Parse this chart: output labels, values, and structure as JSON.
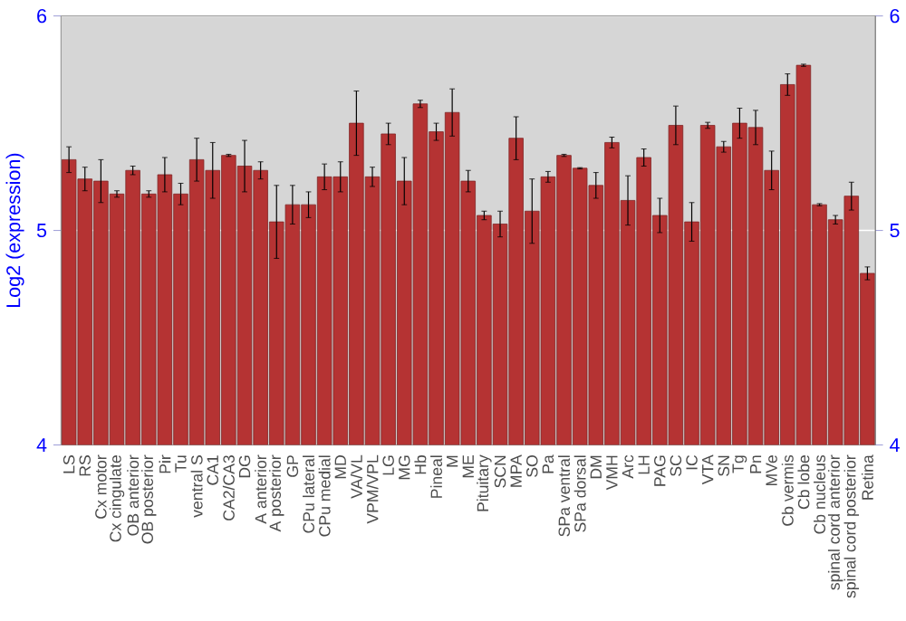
{
  "chart_data": {
    "type": "bar",
    "ylabel": "Log2 (expression)",
    "categories": [
      "LS",
      "RS",
      "Cx motor",
      "Cx cingulate",
      "OB anterior",
      "OB posterior",
      "Pir",
      "Tu",
      "ventral S",
      "CA1",
      "CA2/CA3",
      "DG",
      "A anterior",
      "A posterior",
      "GP",
      "CPu lateral",
      "CPu medial",
      "MD",
      "VA/VL",
      "VPM/VPL",
      "LG",
      "MG",
      "Hb",
      "Pineal",
      "M",
      "ME",
      "Pituitary",
      "SCN",
      "MPA",
      "SO",
      "Pa",
      "SPa ventral",
      "SPa dorsal",
      "DM",
      "VMH",
      "Arc",
      "LH",
      "PAG",
      "SC",
      "IC",
      "VTA",
      "SN",
      "Tg",
      "Pn",
      "MVe",
      "Cb vermis",
      "Cb lobe",
      "Cb nucleus",
      "spinal cord anterior",
      "spinal cord posterior",
      "Retina"
    ],
    "values": [
      5.33,
      5.24,
      5.23,
      5.17,
      5.28,
      5.17,
      5.26,
      5.17,
      5.33,
      5.28,
      5.35,
      5.3,
      5.28,
      5.04,
      5.12,
      5.12,
      5.25,
      5.25,
      5.5,
      5.25,
      5.45,
      5.23,
      5.59,
      5.46,
      5.55,
      5.23,
      5.07,
      5.03,
      5.43,
      5.09,
      5.25,
      5.35,
      5.29,
      5.21,
      5.41,
      5.14,
      5.34,
      5.07,
      5.49,
      5.04,
      5.49,
      5.39,
      5.5,
      5.48,
      5.28,
      5.68,
      5.77,
      5.12,
      5.05,
      5.16,
      4.8
    ],
    "errors": [
      0.06,
      0.055,
      0.1,
      0.015,
      0.02,
      0.015,
      0.08,
      0.05,
      0.1,
      0.13,
      0.005,
      0.12,
      0.04,
      0.17,
      0.09,
      0.06,
      0.06,
      0.07,
      0.15,
      0.045,
      0.05,
      0.11,
      0.017,
      0.04,
      0.11,
      0.05,
      0.02,
      0.06,
      0.1,
      0.15,
      0.025,
      0.005,
      0.003,
      0.06,
      0.025,
      0.115,
      0.04,
      0.08,
      0.09,
      0.09,
      0.014,
      0.025,
      0.07,
      0.08,
      0.09,
      0.05,
      0.005,
      0.005,
      0.02,
      0.065,
      0.03
    ],
    "color": "#b53333",
    "ylim": [
      4,
      6
    ],
    "yticks": [
      4,
      5,
      6
    ],
    "y2lim": [
      4,
      6
    ],
    "y2ticks": [
      4,
      5,
      6
    ],
    "grid": "y"
  }
}
